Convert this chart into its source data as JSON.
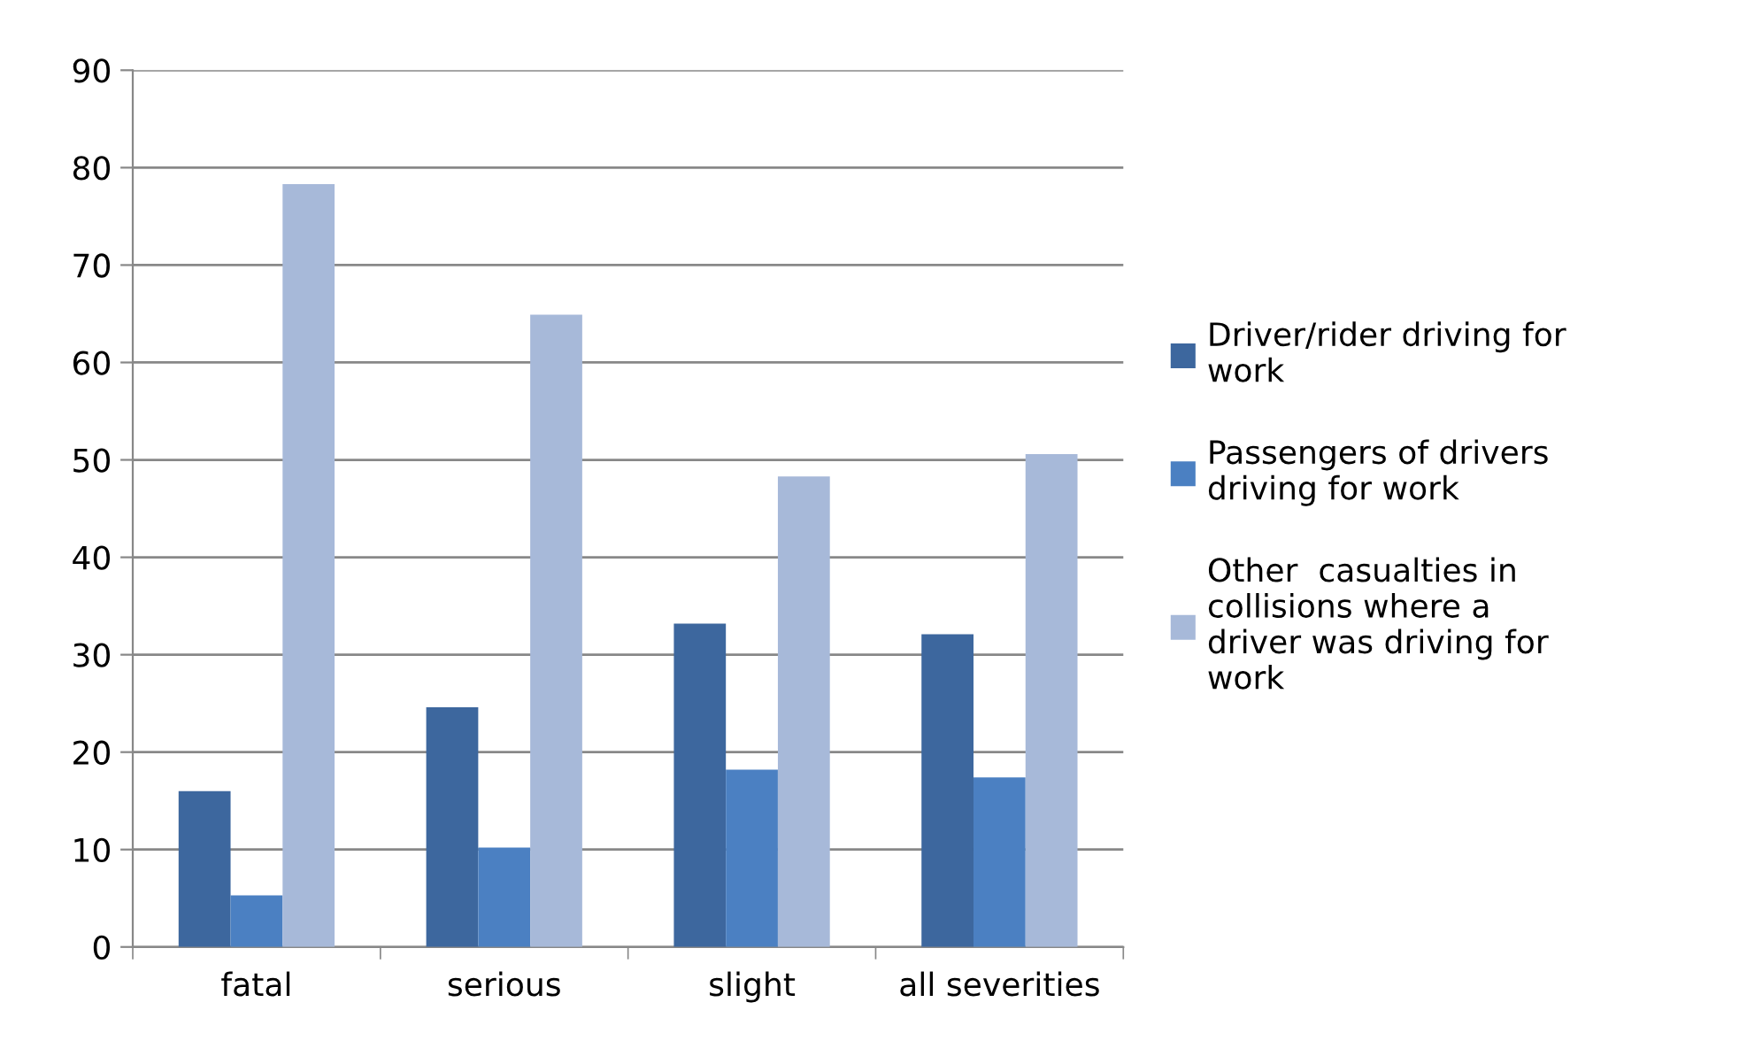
{
  "chart_data": {
    "type": "bar",
    "categories": [
      "fatal",
      "serious",
      "slight",
      "all severities"
    ],
    "series": [
      {
        "name": "Driver/rider driving for work",
        "color": "#3d679e",
        "values": [
          16,
          24.6,
          33.2,
          32.1
        ]
      },
      {
        "name": "Passengers of drivers driving for work",
        "color": "#4b80c2",
        "values": [
          5.3,
          10.2,
          18.2,
          17.4
        ]
      },
      {
        "name": "Other  casualties in collisions where a driver was driving for work",
        "color": "#a7b9d9",
        "values": [
          78.3,
          64.9,
          48.3,
          50.6
        ]
      }
    ],
    "ylim": [
      0,
      90
    ],
    "yticks": [
      0,
      10,
      20,
      30,
      40,
      50,
      60,
      70,
      80,
      90
    ],
    "grid": "y",
    "legend": "right"
  }
}
